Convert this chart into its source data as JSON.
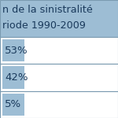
{
  "header_lines": [
    "n de la sinistralité",
    "riode 1990-2009"
  ],
  "rows": [
    "53%",
    "42%",
    "5%"
  ],
  "header_bg": "#9dbdd4",
  "cell_bg": "#9dbdd4",
  "text_color": "#1a3a5c",
  "border_color": "#7a9ab0",
  "background": "#ffffff"
}
